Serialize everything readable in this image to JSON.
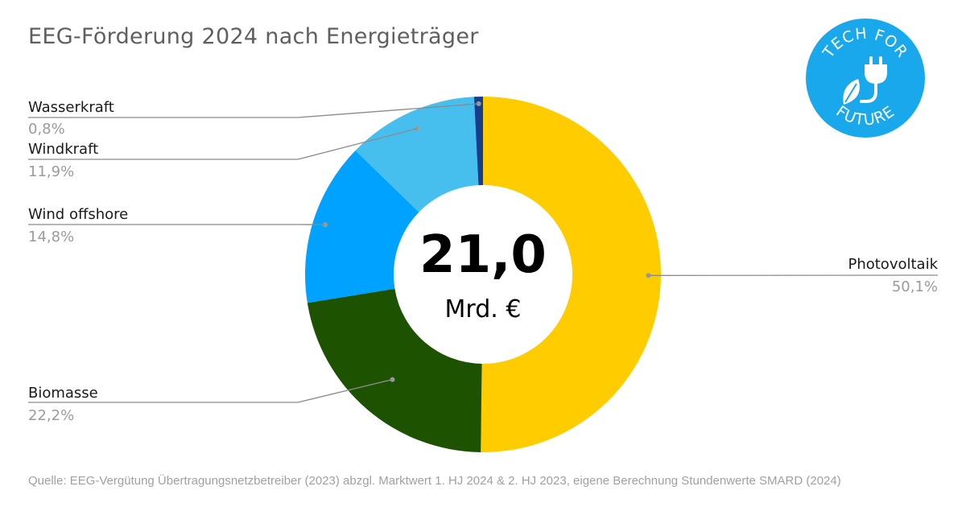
{
  "title": "EEG-Förderung 2024 nach Energieträger",
  "source": "Quelle: EEG-Vergütung Übertragungsnetzbetreiber (2023) abzgl. Marktwert 1. HJ 2024 & 2. HJ 2023, eigene Berechnung Stundenwerte SMARD (2024)",
  "logo": {
    "text_top": "TECH FOR",
    "text_bottom": "FUTURE",
    "color": "#1aa8ec"
  },
  "center": {
    "value": "21,0",
    "unit": "Mrd. €"
  },
  "chart_data": {
    "type": "pie",
    "donut": true,
    "total": 21.0,
    "total_unit": "Mrd. €",
    "slices": [
      {
        "name": "Photovoltaik",
        "value": 50.1,
        "label": "50,1%",
        "color": "#ffcc00"
      },
      {
        "name": "Biomasse",
        "value": 22.2,
        "label": "22,2%",
        "color": "#1d5200"
      },
      {
        "name": "Wind offshore",
        "value": 14.8,
        "label": "14,8%",
        "color": "#00a2ff"
      },
      {
        "name": "Windkraft",
        "value": 11.9,
        "label": "11,9%",
        "color": "#47bfee"
      },
      {
        "name": "Wasserkraft",
        "value": 0.8,
        "label": "0,8%",
        "color": "#173e8c"
      }
    ]
  }
}
